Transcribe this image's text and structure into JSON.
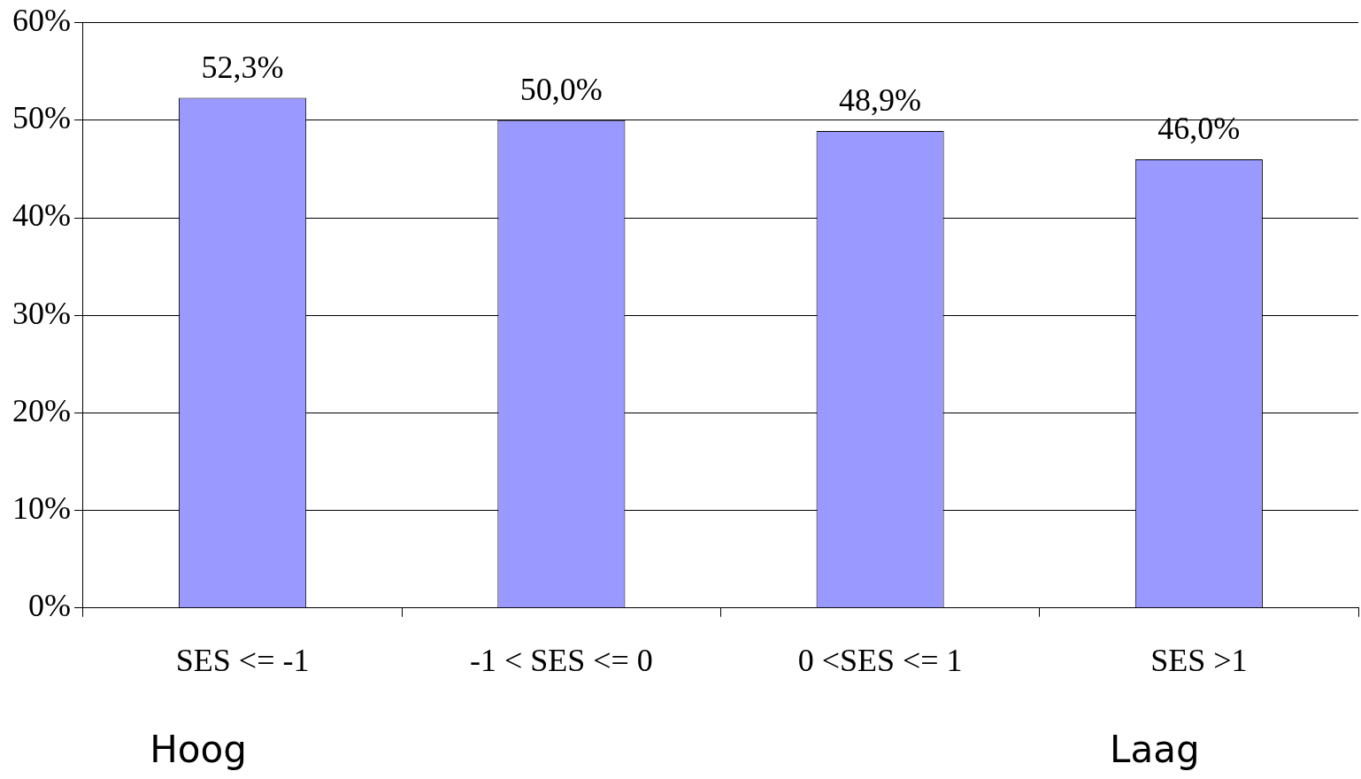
{
  "chart_data": {
    "type": "bar",
    "categories": [
      "SES <= -1",
      "-1 < SES <= 0",
      "0 <SES <= 1",
      "SES >1"
    ],
    "values": [
      52.3,
      50.0,
      48.9,
      46.0
    ],
    "value_labels": [
      "52,3%",
      "50,0%",
      "48,9%",
      "46,0%"
    ],
    "color": "#9999ff",
    "ylim": [
      0,
      60
    ],
    "yticks": [
      {
        "value": 0,
        "label": "0%"
      },
      {
        "value": 10,
        "label": "10%"
      },
      {
        "value": 20,
        "label": "20%"
      },
      {
        "value": 30,
        "label": "30%"
      },
      {
        "value": 40,
        "label": "40%"
      },
      {
        "value": 50,
        "label": "50%"
      },
      {
        "value": 60,
        "label": "60%"
      }
    ],
    "grid": "y",
    "annotations": [
      "Hoog",
      "Laag"
    ]
  }
}
